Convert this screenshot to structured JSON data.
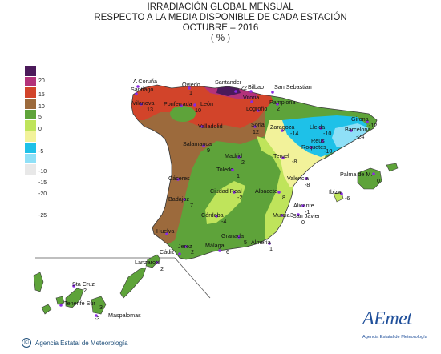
{
  "title": {
    "line1": "IRRADIACIÓN GLOBAL MENSUAL",
    "line2": "RESPECTO A LA MEDIA DISPONIBLE DE CADA ESTACIÓN",
    "line3": "OCTUBRE – 2016",
    "line4": "( % )"
  },
  "legend": {
    "labels": [
      "20",
      "15",
      "10",
      "5",
      "0",
      "-5",
      "-10",
      "-15",
      "-20",
      "-25"
    ],
    "colors": [
      "#4b1a5a",
      "#b3327a",
      "#d2442a",
      "#9c6a3c",
      "#5ea33a",
      "#bfe45b",
      "#f2f29a",
      "#1ec1e8",
      "#8fe0f7",
      "#e8e8e8"
    ]
  },
  "stations": [
    {
      "name": "A Coruña",
      "value": ""
    },
    {
      "name": "Santiago",
      "value": ""
    },
    {
      "name": "Oviedo",
      "value": "1"
    },
    {
      "name": "Santander",
      "value": "22"
    },
    {
      "name": "Bilbao",
      "value": ""
    },
    {
      "name": "San Sebastian",
      "value": ""
    },
    {
      "name": "Vilanova",
      "value": "13"
    },
    {
      "name": "Ponferrada",
      "value": ""
    },
    {
      "name": "León",
      "value": "10"
    },
    {
      "name": "Vitoria",
      "value": ""
    },
    {
      "name": "Pamplona",
      "value": "2"
    },
    {
      "name": "Logroño",
      "value": ""
    },
    {
      "name": "Valladolid",
      "value": ""
    },
    {
      "name": "Soria",
      "value": "12"
    },
    {
      "name": "Zaragoza",
      "value": "-14"
    },
    {
      "name": "Lleida",
      "value": "-10"
    },
    {
      "name": "Girona",
      "value": "-12"
    },
    {
      "name": "Barcelona",
      "value": "-24"
    },
    {
      "name": "Reus",
      "value": ""
    },
    {
      "name": "Roquetes",
      "value": "-10"
    },
    {
      "name": "Salamanca",
      "value": "9"
    },
    {
      "name": "Madrid",
      "value": "2"
    },
    {
      "name": "Teruel",
      "value": "-8"
    },
    {
      "name": "Toledo",
      "value": "1"
    },
    {
      "name": "Cáceres",
      "value": ""
    },
    {
      "name": "Valencia",
      "value": "-8"
    },
    {
      "name": "Palma de M.",
      "value": "0"
    },
    {
      "name": "Badajoz",
      "value": "7"
    },
    {
      "name": "Ciudad Real",
      "value": "-2"
    },
    {
      "name": "Albacete",
      "value": "8"
    },
    {
      "name": "Ibiza",
      "value": "-6"
    },
    {
      "name": "Alicante",
      "value": "-1"
    },
    {
      "name": "Córdoba",
      "value": "-4"
    },
    {
      "name": "Murcia",
      "value": "3"
    },
    {
      "name": "San Javier",
      "value": "0"
    },
    {
      "name": "Huelva",
      "value": ""
    },
    {
      "name": "Granada",
      "value": "5"
    },
    {
      "name": "Almería",
      "value": "1"
    },
    {
      "name": "Jerez",
      "value": "2"
    },
    {
      "name": "Cádiz",
      "value": ""
    },
    {
      "name": "Málaga",
      "value": "6"
    },
    {
      "name": "Lanzarote",
      "value": "2"
    },
    {
      "name": "Sta Cruz",
      "value": "2"
    },
    {
      "name": "Tenerife Sur",
      "value": "3"
    },
    {
      "name": "Maspalomas",
      "value": "-3"
    }
  ],
  "footer": {
    "copyright_symbol": "©",
    "agency": "Agencia Estatal de Meteorología",
    "logo_text": "AEmet",
    "logo_subtext": "Agencia Estatal de Meteorología"
  }
}
